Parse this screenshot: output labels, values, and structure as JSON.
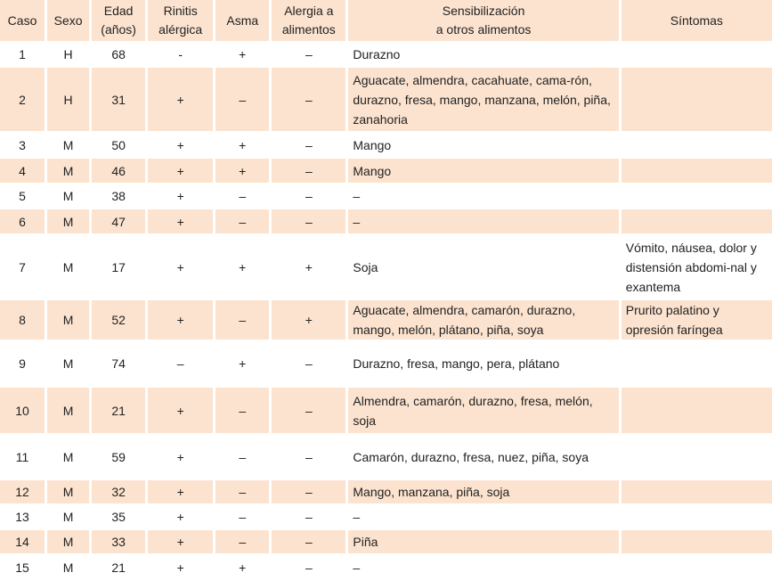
{
  "headers": [
    "Caso",
    "Sexo",
    "Edad (años)",
    "Rinitis alérgica",
    "Asma",
    "Alergia a alimentos",
    "Sensibilización a otros alimentos",
    "Síntomas"
  ],
  "rows": [
    [
      "1",
      "H",
      "68",
      "-",
      "+",
      "–",
      "Durazno",
      ""
    ],
    [
      "2",
      "H",
      "31",
      "+",
      "–",
      "–",
      "Aguacate, almendra, cacahuate, cama-rón, durazno, fresa, mango, manzana, melón, piña, zanahoria",
      ""
    ],
    [
      "3",
      "M",
      "50",
      "+",
      "+",
      "–",
      "Mango",
      ""
    ],
    [
      "4",
      "M",
      "46",
      "+",
      "+",
      "–",
      "Mango",
      ""
    ],
    [
      "5",
      "M",
      "38",
      "+",
      "–",
      "–",
      "–",
      ""
    ],
    [
      "6",
      "M",
      "47",
      "+",
      "–",
      "–",
      "–",
      ""
    ],
    [
      "7",
      "M",
      "17",
      "+",
      "+",
      "+",
      "Soja",
      "Vómito, náusea, dolor y distensión abdomi-nal y exantema"
    ],
    [
      "8",
      "M",
      "52",
      "+",
      "–",
      "+",
      "Aguacate, almendra, camarón, durazno, mango, melón, plátano, piña, soya",
      "Prurito palatino y opresión faríngea"
    ],
    [
      "9",
      "M",
      "74",
      "–",
      "+",
      "–",
      "Durazno, fresa, mango, pera, plátano",
      ""
    ],
    [
      "10",
      "M",
      "21",
      "+",
      "–",
      "–",
      "Almendra, camarón, durazno, fresa, melón, soja",
      ""
    ],
    [
      "11",
      "M",
      "59",
      "+",
      "–",
      "–",
      "Camarón, durazno, fresa, nuez, piña, soya",
      ""
    ],
    [
      "12",
      "M",
      "32",
      "+",
      "–",
      "–",
      "Mango, manzana, piña, soja",
      ""
    ],
    [
      "13",
      "M",
      "35",
      "+",
      "–",
      "–",
      "–",
      ""
    ],
    [
      "14",
      "M",
      "33",
      "+",
      "–",
      "–",
      "Piña",
      ""
    ],
    [
      "15",
      "M",
      "21",
      "+",
      "+",
      "–",
      "–",
      ""
    ]
  ]
}
